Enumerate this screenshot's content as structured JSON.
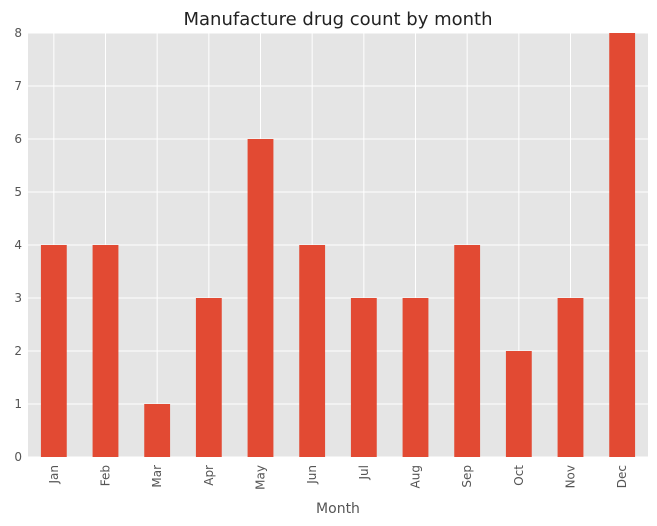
{
  "chart_data": {
    "type": "bar",
    "title": "Manufacture drug count by month",
    "xlabel": "Month",
    "ylabel": "",
    "categories": [
      "Jan",
      "Feb",
      "Mar",
      "Apr",
      "May",
      "Jun",
      "Jul",
      "Aug",
      "Sep",
      "Oct",
      "Nov",
      "Dec"
    ],
    "values": [
      4,
      4,
      1,
      3,
      6,
      4,
      3,
      3,
      4,
      2,
      3,
      8
    ],
    "ylim": [
      0,
      8
    ],
    "yticks": [
      "0",
      "1",
      "2",
      "3",
      "4",
      "5",
      "6",
      "7",
      "8"
    ],
    "grid": true,
    "legend": "none",
    "colors": {
      "bar": "#E24A33",
      "plot_background": "#E5E5E5",
      "grid": "#FFFFFF"
    }
  }
}
